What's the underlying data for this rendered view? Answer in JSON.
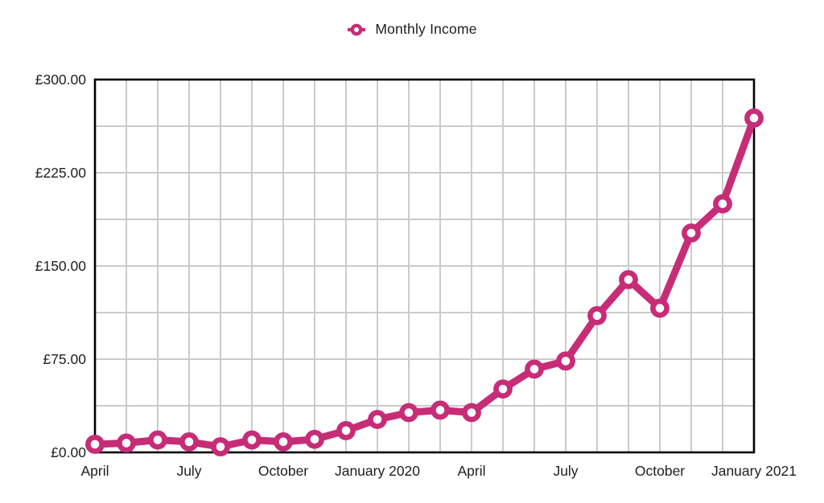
{
  "legend": {
    "label": "Monthly Income"
  },
  "colors": {
    "series": "#c72c77",
    "grid": "#cbcbcb",
    "axis": "#000000",
    "text": "#1e1e1e",
    "background": "#ffffff"
  },
  "chart_data": {
    "type": "line",
    "title": "",
    "series_name": "Monthly Income",
    "legend_position": "top-center",
    "grid": true,
    "x": [
      "April 2019",
      "May 2019",
      "June 2019",
      "July 2019",
      "August 2019",
      "September 2019",
      "October 2019",
      "November 2019",
      "December 2019",
      "January 2020",
      "February 2020",
      "March 2020",
      "April 2020",
      "May 2020",
      "June 2020",
      "July 2020",
      "August 2020",
      "September 2020",
      "October 2020",
      "November 2020",
      "December 2020",
      "January 2021"
    ],
    "values": [
      6.5,
      7.5,
      10,
      8.5,
      4.5,
      10,
      8.5,
      10.5,
      17.5,
      26.5,
      32,
      34,
      32,
      51,
      67,
      73.5,
      110,
      139,
      116,
      176.5,
      200,
      269
    ],
    "ylim": [
      0,
      300
    ],
    "y_minor_step": 37.5,
    "y_ticks": [
      {
        "value": 0,
        "label": "£0.00"
      },
      {
        "value": 75,
        "label": "£75.00"
      },
      {
        "value": 150,
        "label": "£150.00"
      },
      {
        "value": 225,
        "label": "£225.00"
      },
      {
        "value": 300,
        "label": "£300.00"
      }
    ],
    "x_tick_labels": [
      {
        "index": 0,
        "label": "April"
      },
      {
        "index": 3,
        "label": "July"
      },
      {
        "index": 6,
        "label": "October"
      },
      {
        "index": 9,
        "label": "January 2020"
      },
      {
        "index": 12,
        "label": "April"
      },
      {
        "index": 15,
        "label": "July"
      },
      {
        "index": 18,
        "label": "October"
      },
      {
        "index": 21,
        "label": "January 2021"
      }
    ]
  }
}
